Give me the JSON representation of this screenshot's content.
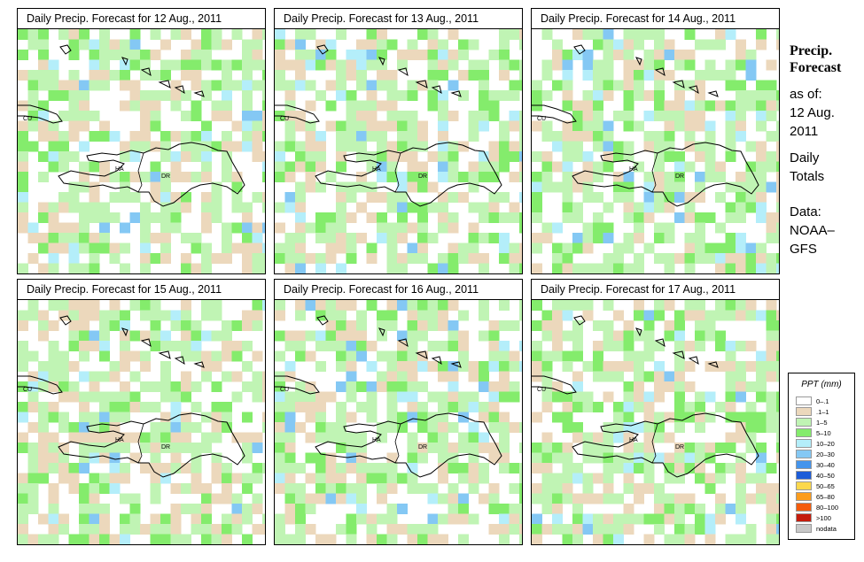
{
  "panels": [
    {
      "title": "Daily Precip. Forecast for  12 Aug., 2011",
      "date": "12 Aug., 2011"
    },
    {
      "title": "Daily Precip. Forecast for  13 Aug., 2011",
      "date": "13 Aug., 2011"
    },
    {
      "title": "Daily Precip. Forecast for  14 Aug., 2011",
      "date": "14 Aug., 2011"
    },
    {
      "title": "Daily Precip. Forecast for  15 Aug., 2011",
      "date": "15 Aug., 2011"
    },
    {
      "title": "Daily Precip. Forecast for  16 Aug., 2011",
      "date": "16 Aug., 2011"
    },
    {
      "title": "Daily Precip. Forecast for  17 Aug., 2011",
      "date": "17 Aug., 2011"
    }
  ],
  "country_labels": {
    "cuba": "CU",
    "haiti": "HA",
    "dominican_republic": "DR"
  },
  "sidebar": {
    "title_line1": "Precip.",
    "title_line2": "Forecast",
    "asof_line1": "as of:",
    "asof_line2": "12 Aug.",
    "asof_line3": "2011",
    "totals_line1": "Daily",
    "totals_line2": "Totals",
    "data_line1": "Data:",
    "data_line2": "NOAA–",
    "data_line3": "GFS"
  },
  "legend": {
    "title": "PPT (mm)",
    "items": [
      {
        "label": "0–.1",
        "color": "#ffffff"
      },
      {
        "label": ".1–1",
        "color": "#ecd8bc"
      },
      {
        "label": "1–5",
        "color": "#c0f4b4"
      },
      {
        "label": "5–10",
        "color": "#84ec6c"
      },
      {
        "label": "10–20",
        "color": "#b4eefa"
      },
      {
        "label": "20–30",
        "color": "#84c8f4"
      },
      {
        "label": "30–40",
        "color": "#4494ec"
      },
      {
        "label": "40–50",
        "color": "#1c5cd8"
      },
      {
        "label": "50–65",
        "color": "#fcd84c"
      },
      {
        "label": "65–80",
        "color": "#fc9c1c"
      },
      {
        "label": "80–100",
        "color": "#f45c0c"
      },
      {
        "label": ">100",
        "color": "#c41c0c"
      },
      {
        "label": "nodata",
        "color": "#c8c8c8"
      }
    ]
  }
}
